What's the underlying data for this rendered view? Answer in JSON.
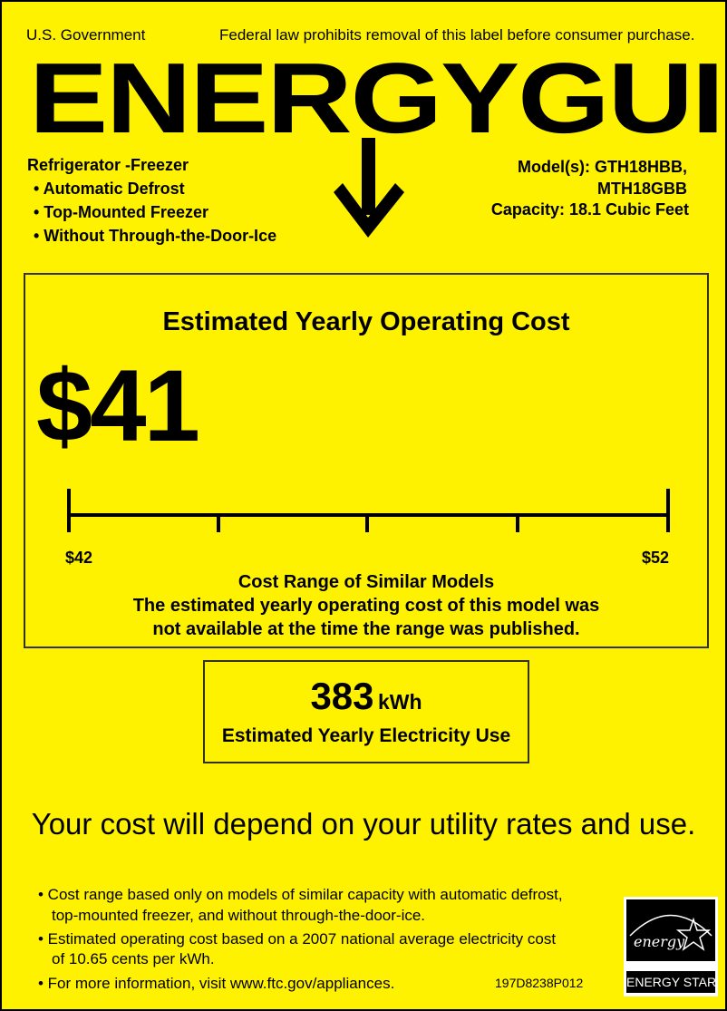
{
  "header": {
    "gov": "U.S. Government",
    "notice": "Federal law prohibits removal of this label before consumer purchase.",
    "logo": "ENERGYGUIDE"
  },
  "product": {
    "type": "Refrigerator -Freezer",
    "features": [
      "• Automatic Defrost",
      "• Top-Mounted Freezer",
      "• Without Through-the-Door-Ice"
    ],
    "models_line1": "Model(s): GTH18HBB,",
    "models_line2": "MTH18GBB",
    "capacity": "Capacity: 18.1 Cubic Feet"
  },
  "cost": {
    "title": "Estimated Yearly Operating Cost",
    "value": "$41",
    "range_min": "$42",
    "range_max": "$52",
    "range_title": "Cost Range of Similar Models",
    "note_line1": "The estimated yearly operating cost of this model was",
    "note_line2": "not available at the time the range was published."
  },
  "energy": {
    "value": "383",
    "unit": "kWh",
    "label": "Estimated Yearly Electricity Use"
  },
  "rates_note": "Your cost will depend on your utility rates and use.",
  "footnotes": [
    {
      "l1": "• Cost range based only on models of similar capacity with automatic defrost,",
      "l2": "top-mounted freezer, and without through-the-door-ice."
    },
    {
      "l1": "• Estimated operating cost based on a 2007 national average electricity cost",
      "l2": "of 10.65 cents per kWh."
    },
    {
      "l1": "• For more information, visit www.ftc.gov/appliances.",
      "l2": ""
    }
  ],
  "code": "197D8238P012",
  "energy_star": {
    "script": "energy",
    "label": "ENERGY STAR"
  },
  "colors": {
    "background": "#fff200",
    "ink": "#000000"
  }
}
